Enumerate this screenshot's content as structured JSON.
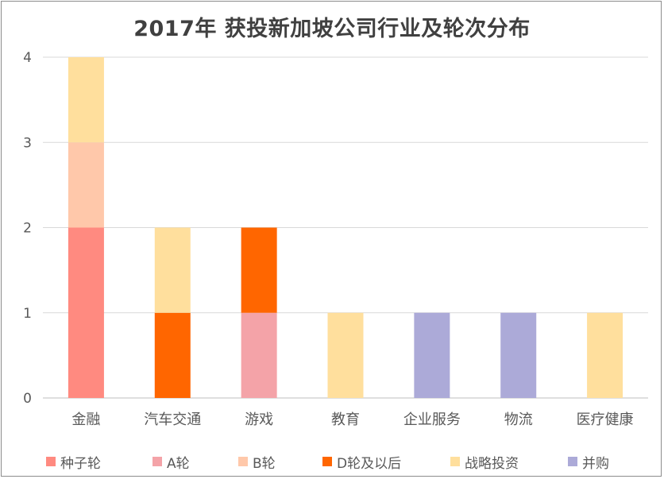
{
  "chart_data": {
    "type": "bar",
    "stacked": true,
    "title": "2017年 获投新加坡公司行业及轮次分布",
    "categories": [
      "金融",
      "汽车交通",
      "游戏",
      "教育",
      "企业服务",
      "物流",
      "医疗健康"
    ],
    "series": [
      {
        "name": "种子轮",
        "color": "#ff8a80",
        "values": [
          2,
          0,
          0,
          0,
          0,
          0,
          0
        ]
      },
      {
        "name": "A轮",
        "color": "#f4a3a8",
        "values": [
          0,
          0,
          1,
          0,
          0,
          0,
          0
        ]
      },
      {
        "name": "B轮",
        "color": "#ffc8aa",
        "values": [
          1,
          0,
          0,
          0,
          0,
          0,
          0
        ]
      },
      {
        "name": "D轮及以后",
        "color": "#ff6600",
        "values": [
          0,
          1,
          1,
          0,
          0,
          0,
          0
        ]
      },
      {
        "name": "战略投资",
        "color": "#ffdf9d",
        "values": [
          1,
          1,
          0,
          1,
          0,
          0,
          1
        ]
      },
      {
        "name": "并购",
        "color": "#acaad8",
        "values": [
          0,
          0,
          0,
          0,
          1,
          1,
          0
        ]
      }
    ],
    "ylim": [
      0,
      4
    ],
    "yticks": [
      0,
      1,
      2,
      3,
      4
    ],
    "grid": true,
    "legend_position": "bottom"
  }
}
